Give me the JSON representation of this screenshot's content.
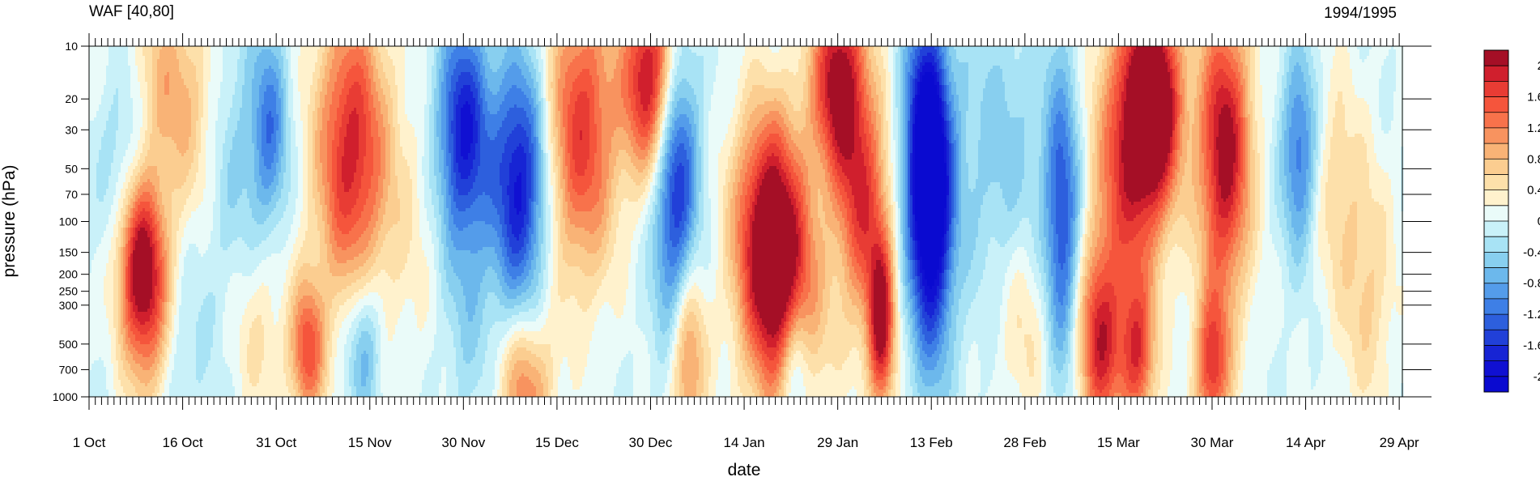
{
  "chart_data": {
    "type": "heatmap",
    "title_left": "WAF [40,80]",
    "title_right": "1994/1995",
    "xlabel": "date",
    "ylabel": "pressure (hPa)",
    "y_scale": "log",
    "y_reversed": true,
    "ylim": [
      1000,
      10
    ],
    "y_ticks": [
      10,
      20,
      30,
      50,
      70,
      100,
      150,
      200,
      250,
      300,
      500,
      700,
      1000
    ],
    "x_tick_labels": [
      "1 Oct",
      "16 Oct",
      "31 Oct",
      "15 Nov",
      "30 Nov",
      "15 Dec",
      "30 Dec",
      "14 Jan",
      "29 Jan",
      "13 Feb",
      "28 Feb",
      "15 Mar",
      "30 Mar",
      "14 Apr",
      "29 Apr"
    ],
    "x_days_total": 211,
    "minor_tick_interval_days": 1,
    "colorbar": {
      "ticks": [
        "2",
        "1.6",
        "1.2",
        "0.8",
        "0.4",
        "0",
        "-0.4",
        "-0.8",
        "-1.2",
        "-1.6",
        "-2"
      ],
      "levels": [
        2.2,
        2.0,
        1.8,
        1.6,
        1.4,
        1.2,
        1.0,
        0.8,
        0.6,
        0.4,
        0.2,
        0.0,
        -0.2,
        -0.4,
        -0.6,
        -0.8,
        -1.0,
        -1.2,
        -1.4,
        -1.6,
        -1.8,
        -2.0,
        -2.2
      ],
      "colors": [
        "#a50f26",
        "#d01f2d",
        "#e83c34",
        "#f5553c",
        "#f8724b",
        "#f8935f",
        "#f9b376",
        "#fbcd90",
        "#fde0aa",
        "#fff2cd",
        "#eafbf9",
        "#c9f1f9",
        "#a8e3f5",
        "#88cfef",
        "#6cb8ec",
        "#549cea",
        "#3e7fe6",
        "#2d5fdd",
        "#2140d8",
        "#1724d4",
        "#1010d2",
        "#0a0ad0"
      ]
    },
    "features": [
      {
        "day": 8,
        "p": 160,
        "v": 1.8,
        "wd": 2.5,
        "wp": 0.35
      },
      {
        "day": 10,
        "p": 350,
        "v": 1.2,
        "wd": 3,
        "wp": 0.4
      },
      {
        "day": 9,
        "p": 15,
        "v": 0.6,
        "wd": 5,
        "wp": 0.4
      },
      {
        "day": 6,
        "p": 30,
        "v": -0.8,
        "wd": 3,
        "wp": 0.5
      },
      {
        "day": 16,
        "p": 25,
        "v": 0.7,
        "wd": 5,
        "wp": 0.5
      },
      {
        "day": 14,
        "p": 500,
        "v": -0.5,
        "wd": 3,
        "wp": 0.4
      },
      {
        "day": 23,
        "p": 40,
        "v": -0.6,
        "wd": 4,
        "wp": 0.6
      },
      {
        "day": 29,
        "p": 30,
        "v": -1.0,
        "wd": 2,
        "wp": 0.4
      },
      {
        "day": 27,
        "p": 400,
        "v": 0.5,
        "wd": 3,
        "wp": 0.4
      },
      {
        "day": 35,
        "p": 550,
        "v": 1.5,
        "wd": 2,
        "wp": 0.3
      },
      {
        "day": 42,
        "p": 40,
        "v": 1.9,
        "wd": 4,
        "wp": 0.6
      },
      {
        "day": 44,
        "p": 500,
        "v": -0.9,
        "wd": 2,
        "wp": 0.3
      },
      {
        "day": 51,
        "p": 100,
        "v": 0.3,
        "wd": 4,
        "wp": 0.6
      },
      {
        "day": 60,
        "p": 30,
        "v": -1.8,
        "wd": 3,
        "wp": 0.45
      },
      {
        "day": 61,
        "p": 300,
        "v": -0.4,
        "wd": 3,
        "wp": 0.5
      },
      {
        "day": 69,
        "p": 60,
        "v": -1.9,
        "wd": 3,
        "wp": 0.5
      },
      {
        "day": 70,
        "p": 900,
        "v": 1.2,
        "wd": 3,
        "wp": 0.3
      },
      {
        "day": 79,
        "p": 30,
        "v": 1.7,
        "wd": 4,
        "wp": 0.6
      },
      {
        "day": 90,
        "p": 15,
        "v": 2.2,
        "wd": 3,
        "wp": 0.4
      },
      {
        "day": 94,
        "p": 60,
        "v": -1.8,
        "wd": 2.5,
        "wp": 0.6
      },
      {
        "day": 96,
        "p": 600,
        "v": 1.3,
        "wd": 2,
        "wp": 0.4
      },
      {
        "day": 109,
        "p": 110,
        "v": 2.2,
        "wd": 4,
        "wp": 0.5
      },
      {
        "day": 112,
        "p": 400,
        "v": 1.4,
        "wd": 4,
        "wp": 0.5
      },
      {
        "day": 120,
        "p": 15,
        "v": 2.1,
        "wd": 3,
        "wp": 0.4
      },
      {
        "day": 113,
        "p": 700,
        "v": -1.3,
        "wd": 2,
        "wp": 0.3
      },
      {
        "day": 124,
        "p": 80,
        "v": 1.6,
        "wd": 3,
        "wp": 0.5
      },
      {
        "day": 127,
        "p": 400,
        "v": 2.0,
        "wd": 1.5,
        "wp": 0.35
      },
      {
        "day": 135,
        "p": 100,
        "v": -2.0,
        "wd": 2.5,
        "wp": 0.6
      },
      {
        "day": 134,
        "p": 30,
        "v": -1.5,
        "wd": 2.5,
        "wp": 0.5
      },
      {
        "day": 146,
        "p": 40,
        "v": -0.5,
        "wd": 6,
        "wp": 0.6
      },
      {
        "day": 150,
        "p": 400,
        "v": 0.5,
        "wd": 3,
        "wp": 0.4
      },
      {
        "day": 156,
        "p": 100,
        "v": -1.4,
        "wd": 2,
        "wp": 0.6
      },
      {
        "day": 162,
        "p": 500,
        "v": 1.8,
        "wd": 2.5,
        "wp": 0.4
      },
      {
        "day": 167,
        "p": 40,
        "v": 1.8,
        "wd": 4,
        "wp": 0.6
      },
      {
        "day": 171,
        "p": 20,
        "v": 2.2,
        "wd": 3,
        "wp": 0.4
      },
      {
        "day": 168,
        "p": 600,
        "v": 1.5,
        "wd": 2,
        "wp": 0.3
      },
      {
        "day": 182,
        "p": 40,
        "v": 2.2,
        "wd": 3,
        "wp": 0.6
      },
      {
        "day": 180,
        "p": 700,
        "v": 1.6,
        "wd": 2,
        "wp": 0.3
      },
      {
        "day": 194,
        "p": 40,
        "v": -1.2,
        "wd": 2,
        "wp": 0.4
      },
      {
        "day": 200,
        "p": 60,
        "v": 0.5,
        "wd": 3,
        "wp": 0.5
      },
      {
        "day": 205,
        "p": 250,
        "v": 0.6,
        "wd": 3,
        "wp": 0.5
      }
    ]
  }
}
